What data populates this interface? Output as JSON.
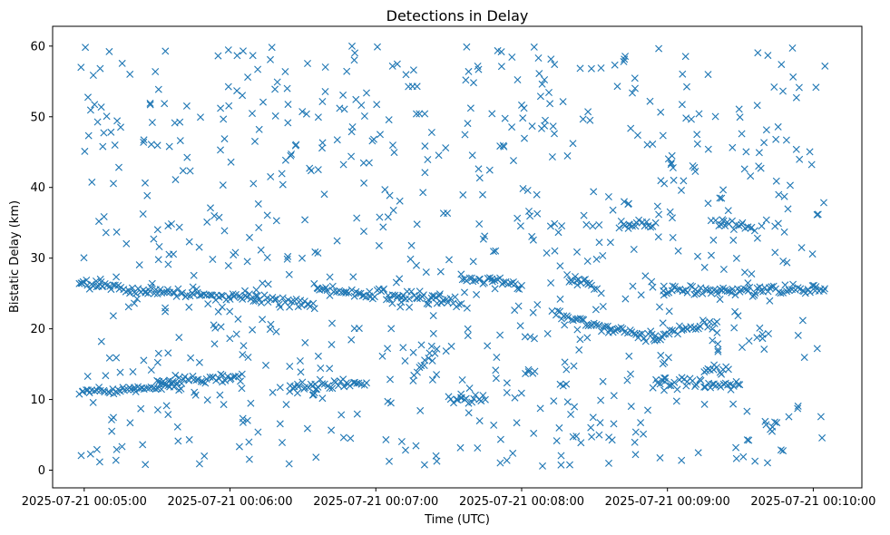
{
  "chart_data": {
    "type": "scatter",
    "title": "Detections in Delay",
    "xlabel": "Time (UTC)",
    "ylabel": "Bistatic Delay (km)",
    "marker": "x",
    "color": "#1f77b4",
    "grid": false,
    "xlim": [
      "2025-07-21 00:04:47",
      "2025-07-21 00:10:20"
    ],
    "ylim": [
      -2.5,
      62.8
    ],
    "x_ticks": [
      "2025-07-21 00:05:00",
      "2025-07-21 00:06:00",
      "2025-07-21 00:07:00",
      "2025-07-21 00:08:00",
      "2025-07-21 00:09:00",
      "2025-07-21 00:10:00"
    ],
    "y_ticks": [
      0,
      10,
      20,
      30,
      40,
      50,
      60
    ],
    "start_time": "2025-07-21 00:05:00",
    "tracks": [
      {
        "from_time": "00:04:58",
        "to_time": "00:06:35",
        "delay_from": 26.2,
        "delay_to": 23.6
      },
      {
        "from_time": "00:06:35",
        "to_time": "00:07:35",
        "delay_from": 25.6,
        "delay_to": 23.8
      },
      {
        "from_time": "00:07:35",
        "to_time": "00:08:00",
        "delay_from": 27.0,
        "delay_to": 26.2
      },
      {
        "from_time": "00:08:14",
        "to_time": "00:08:55",
        "delay_from": 22.0,
        "delay_to": 18.6
      },
      {
        "from_time": "00:08:55",
        "to_time": "00:09:20",
        "delay_from": 19.0,
        "delay_to": 21.0
      },
      {
        "from_time": "00:08:20",
        "to_time": "00:08:30",
        "delay_from": 27.0,
        "delay_to": 26.0
      },
      {
        "from_time": "00:08:58",
        "to_time": "00:10:05",
        "delay_from": 25.5,
        "delay_to": 25.5
      },
      {
        "from_time": "00:08:40",
        "to_time": "00:08:55",
        "delay_from": 34.7,
        "delay_to": 34.7
      },
      {
        "from_time": "00:09:20",
        "to_time": "00:09:35",
        "delay_from": 35.0,
        "delay_to": 34.4
      },
      {
        "from_time": "00:04:58",
        "to_time": "00:05:40",
        "delay_from": 11.0,
        "delay_to": 12.0
      },
      {
        "from_time": "00:05:30",
        "to_time": "00:06:05",
        "delay_from": 12.5,
        "delay_to": 13.0
      },
      {
        "from_time": "00:06:25",
        "to_time": "00:06:55",
        "delay_from": 12.0,
        "delay_to": 12.0
      },
      {
        "from_time": "00:07:30",
        "to_time": "00:07:45",
        "delay_from": 10.0,
        "delay_to": 10.0
      },
      {
        "from_time": "00:08:55",
        "to_time": "00:09:30",
        "delay_from": 12.3,
        "delay_to": 12.0
      },
      {
        "from_time": "00:09:15",
        "to_time": "00:09:25",
        "delay_from": 14.5,
        "delay_to": 14.5
      },
      {
        "from_time": "00:09:40",
        "to_time": "00:09:45",
        "delay_from": 6.5,
        "delay_to": 6.5
      },
      {
        "from_time": "00:07:15",
        "to_time": "00:07:25",
        "delay_from": 13.0,
        "delay_to": 17.5
      }
    ],
    "clutter": {
      "time_from": "00:04:58",
      "time_to": "00:10:05",
      "delay_min": 0.5,
      "delay_max": 60.0
    }
  }
}
